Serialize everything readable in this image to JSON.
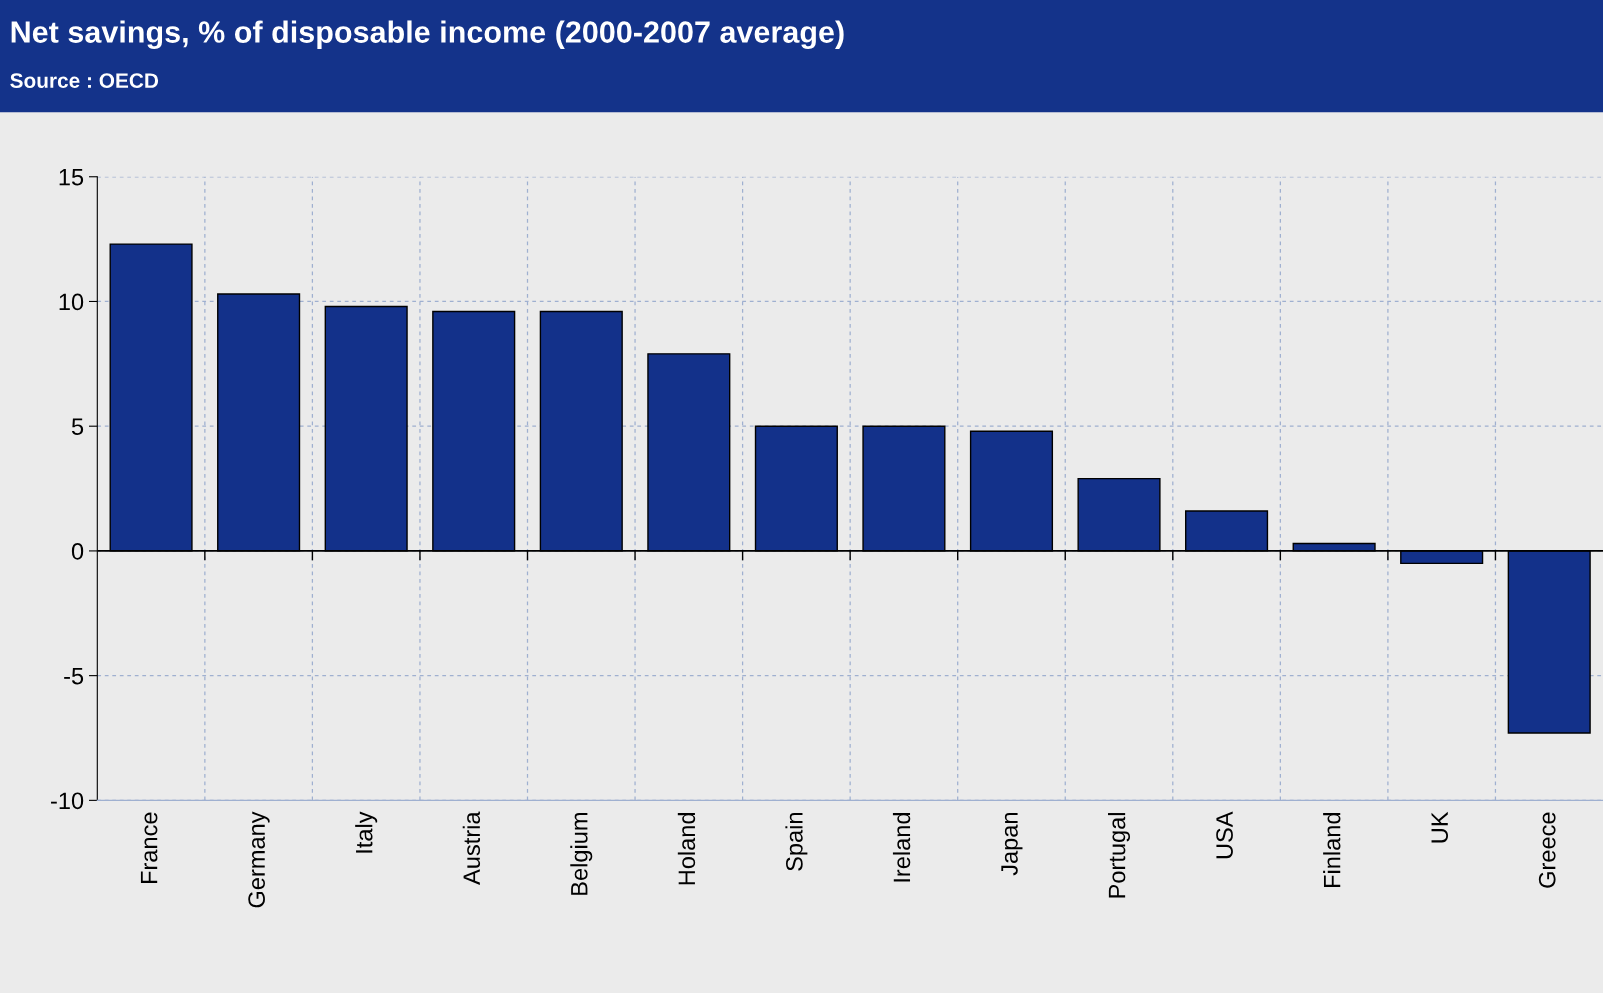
{
  "chart_data": {
    "type": "bar",
    "title": "Net savings, % of disposable income (2000-2007 average)",
    "subtitle": "Source : OECD",
    "categories": [
      "France",
      "Germany",
      "Italy",
      "Austria",
      "Belgium",
      "Holand",
      "Spain",
      "Ireland",
      "Japan",
      "Portugal",
      "USA",
      "Finland",
      "UK",
      "Greece"
    ],
    "values": [
      12.3,
      10.3,
      9.8,
      9.6,
      9.6,
      7.9,
      5.0,
      5.0,
      4.8,
      2.9,
      1.6,
      0.3,
      -0.5,
      -7.3
    ],
    "color": "#13318a",
    "ylim": [
      -10,
      15
    ],
    "yticks": [
      -10,
      -5,
      0,
      5,
      10,
      15
    ],
    "grid": true,
    "legend": false
  }
}
